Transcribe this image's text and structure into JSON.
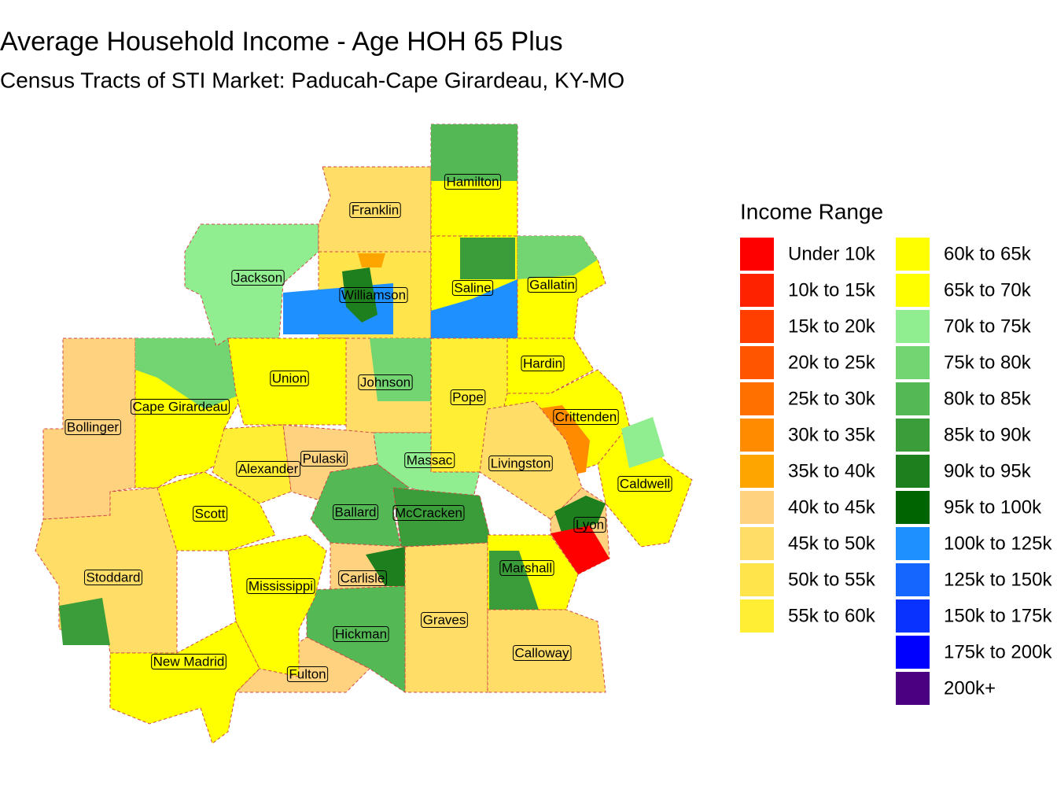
{
  "header": {
    "title": "Average Household Income - Age HOH 65 Plus",
    "subtitle": "Census Tracts of STI Market: Paducah-Cape Girardeau, KY-MO"
  },
  "legend": {
    "title": "Income Range",
    "items": [
      {
        "label": "Under 10k",
        "color": "#FF0000"
      },
      {
        "label": "10k to 15k",
        "color": "#FF2200"
      },
      {
        "label": "15k to 20k",
        "color": "#FF3F00"
      },
      {
        "label": "20k to 25k",
        "color": "#FF5500"
      },
      {
        "label": "25k to 30k",
        "color": "#FF7000"
      },
      {
        "label": "30k to 35k",
        "color": "#FF8C00"
      },
      {
        "label": "35k to 40k",
        "color": "#FFA500"
      },
      {
        "label": "40k to 45k",
        "color": "#FFD27F"
      },
      {
        "label": "45k to 50k",
        "color": "#FFDD66"
      },
      {
        "label": "50k to 55k",
        "color": "#FFE44C"
      },
      {
        "label": "55k to 60k",
        "color": "#FFEE33"
      },
      {
        "label": "60k to 65k",
        "color": "#FFFF00"
      },
      {
        "label": "65k to 70k",
        "color": "#FFFF00"
      },
      {
        "label": "70k to 75k",
        "color": "#90EE90"
      },
      {
        "label": "75k to 80k",
        "color": "#72D572"
      },
      {
        "label": "80k to 85k",
        "color": "#54B954"
      },
      {
        "label": "85k to 90k",
        "color": "#3A9D3A"
      },
      {
        "label": "90k to 95k",
        "color": "#1E7F1E"
      },
      {
        "label": "95k to 100k",
        "color": "#006400"
      },
      {
        "label": "100k to 125k",
        "color": "#1E90FF"
      },
      {
        "label": "125k to 150k",
        "color": "#1565FF"
      },
      {
        "label": "150k to 175k",
        "color": "#0A32FF"
      },
      {
        "label": "175k to 200k",
        "color": "#0000FF"
      },
      {
        "label": "200k+",
        "color": "#4B0082"
      }
    ]
  },
  "counties": [
    "Hamilton",
    "Franklin",
    "Jackson",
    "Williamson",
    "Saline",
    "Gallatin",
    "Hardin",
    "Union",
    "Johnson",
    "Pope",
    "Cape Girardeau",
    "Crittenden",
    "Bollinger",
    "Pulaski",
    "Massac",
    "Livingston",
    "Alexander",
    "Caldwell",
    "Scott",
    "Ballard",
    "McCracken",
    "Lyon",
    "Marshall",
    "Stoddard",
    "Carlisle",
    "Mississippi",
    "Graves",
    "Hickman",
    "Calloway",
    "New Madrid",
    "Fulton"
  ]
}
